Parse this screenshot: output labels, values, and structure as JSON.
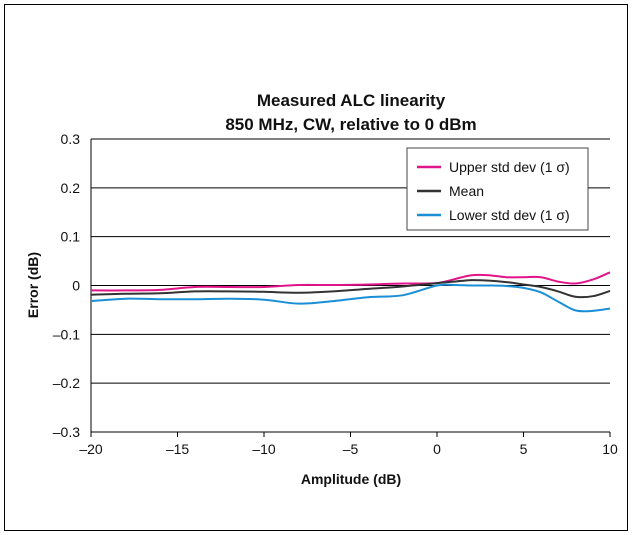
{
  "chart_data": {
    "type": "line",
    "title_lines": [
      "Measured ALC linearity",
      "850 MHz, CW, relative to 0 dBm"
    ],
    "xlabel": "Amplitude (dB)",
    "ylabel": "Error (dB)",
    "xlim": [
      -20,
      10
    ],
    "ylim": [
      -0.3,
      0.3
    ],
    "x_ticks": [
      -20,
      -15,
      -10,
      -5,
      0,
      5,
      10
    ],
    "x_tick_labels": [
      "–20",
      "–15",
      "–10",
      "–5",
      "0",
      "5",
      "10"
    ],
    "y_ticks": [
      0.3,
      0.2,
      0.1,
      0,
      -0.1,
      -0.2,
      -0.3
    ],
    "y_tick_labels": [
      "0.3",
      "0.2",
      "0.1",
      "0",
      "–0.1",
      "–0.2",
      "–0.3"
    ],
    "grid": "horizontal",
    "legend_position": "top-right",
    "series": [
      {
        "name": "Upper std dev (1 σ)",
        "color": "#e0158a",
        "x": [
          -20,
          -18,
          -16,
          -14,
          -12,
          -10,
          -8,
          -6,
          -4,
          -2,
          0,
          1,
          2,
          3,
          4,
          5,
          6,
          7,
          8,
          9,
          10
        ],
        "y": [
          -0.01,
          -0.01,
          -0.009,
          -0.003,
          -0.003,
          -0.003,
          0.001,
          0.001,
          0.002,
          0.004,
          0.005,
          0.013,
          0.021,
          0.021,
          0.017,
          0.017,
          0.017,
          0.008,
          0.004,
          0.012,
          0.027
        ]
      },
      {
        "name": "Mean",
        "color": "#333333",
        "x": [
          -20,
          -18,
          -16,
          -14,
          -12,
          -10,
          -8,
          -6,
          -4,
          -2,
          0,
          1,
          2,
          3,
          4,
          5,
          6,
          7,
          8,
          9,
          10
        ],
        "y": [
          -0.019,
          -0.017,
          -0.016,
          -0.012,
          -0.012,
          -0.013,
          -0.015,
          -0.012,
          -0.007,
          -0.002,
          0.005,
          0.008,
          0.011,
          0.01,
          0.007,
          0.002,
          -0.003,
          -0.012,
          -0.023,
          -0.022,
          -0.011
        ]
      },
      {
        "name": "Lower std dev (1 σ)",
        "color": "#1b8fd6",
        "x": [
          -20,
          -18,
          -16,
          -14,
          -12,
          -10,
          -8,
          -6,
          -4,
          -2,
          0,
          1,
          2,
          3,
          4,
          5,
          6,
          7,
          8,
          9,
          10
        ],
        "y": [
          -0.032,
          -0.027,
          -0.028,
          -0.028,
          -0.027,
          -0.029,
          -0.037,
          -0.032,
          -0.024,
          -0.02,
          0.0,
          0.001,
          0.0,
          0.0,
          -0.001,
          -0.005,
          -0.014,
          -0.033,
          -0.051,
          -0.052,
          -0.047
        ]
      }
    ]
  }
}
